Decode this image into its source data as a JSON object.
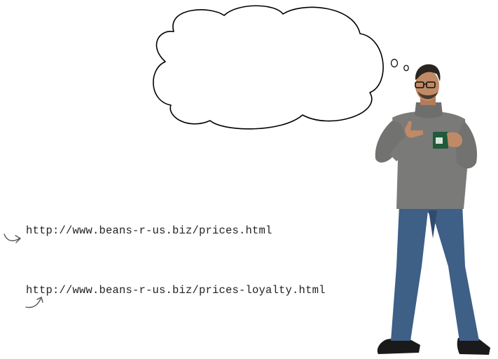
{
  "urls": [
    "http://www.beans-r-us.biz/prices.html",
    "http://www.beans-r-us.biz/prices-loyalty.html"
  ],
  "thought_bubble": {
    "text": ""
  },
  "illustration": {
    "subject": "man-holding-mug-icon",
    "colors": {
      "sweater": "#7a7a78",
      "jeans": "#3e5f86",
      "mug": "#1f5a3a",
      "skin": "#c08a66",
      "hair": "#2b2520",
      "shoes": "#1a1a1a"
    }
  }
}
